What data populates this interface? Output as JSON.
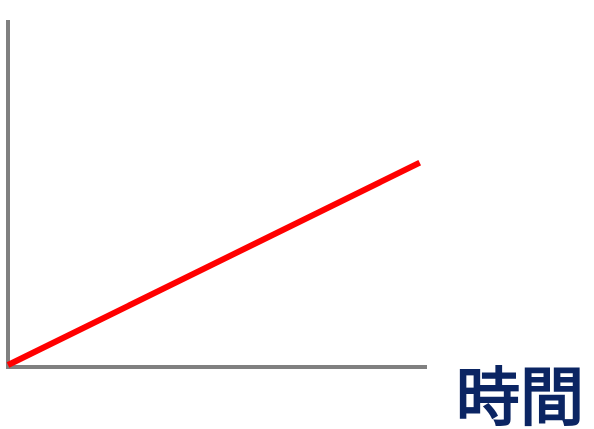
{
  "chart_data": {
    "type": "line",
    "title": "",
    "xlabel": "時間",
    "ylabel": "",
    "grid": false,
    "legend": "none",
    "x": [
      0,
      1
    ],
    "series": [
      {
        "values": [
          0,
          1
        ]
      }
    ],
    "xlim": [
      0,
      1.03
    ],
    "ylim": [
      0,
      1.0
    ]
  },
  "colors": {
    "axis": "#808080",
    "line": "#ff0000",
    "label": "#0b2563"
  }
}
